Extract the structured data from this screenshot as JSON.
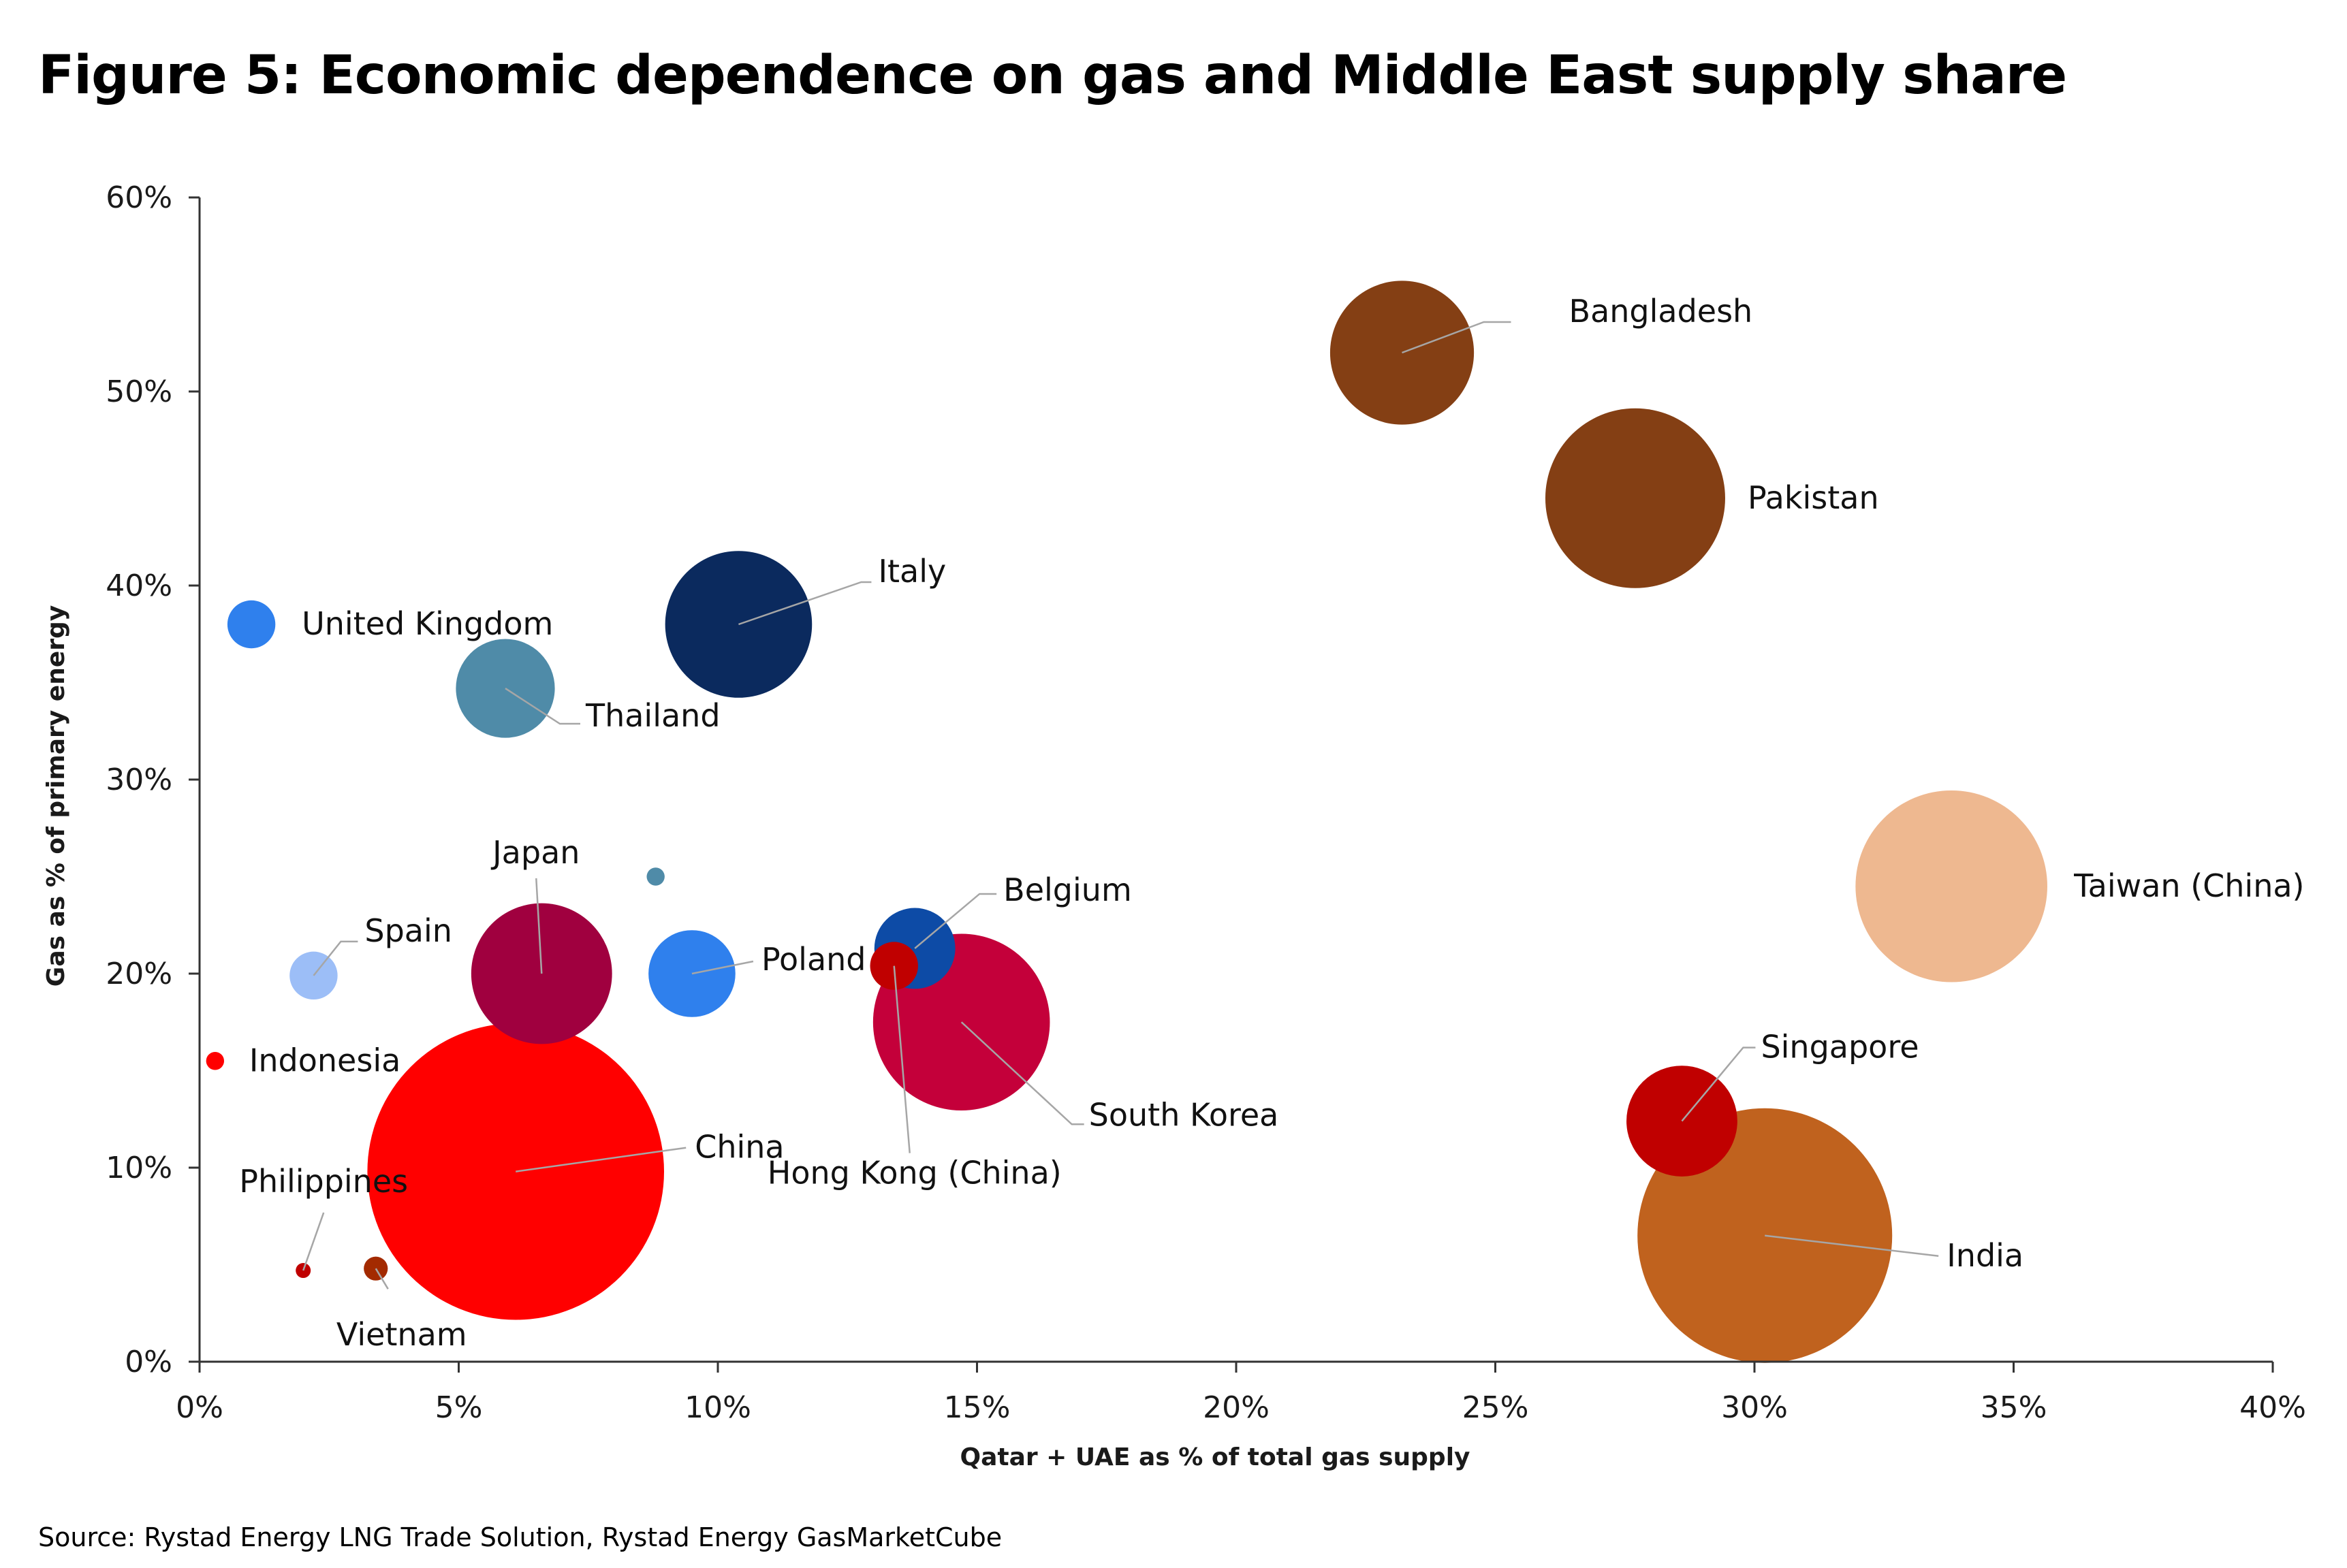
{
  "title": "Figure 5: Economic dependence on gas and Middle East supply share",
  "source": "Source: Rystad Energy LNG Trade Solution, Rystad Energy GasMarketCube",
  "chart_data": {
    "type": "scatter",
    "subtype": "bubble",
    "xlabel": "Qatar + UAE as % of total gas supply",
    "ylabel": "Gas as % of primary energy",
    "xlim": [
      0,
      40
    ],
    "ylim": [
      0,
      60
    ],
    "x_ticks": [
      "0%",
      "5%",
      "10%",
      "15%",
      "20%",
      "25%",
      "30%",
      "35%",
      "40%"
    ],
    "y_ticks": [
      "0%",
      "10%",
      "20%",
      "30%",
      "40%",
      "50%",
      "60%"
    ],
    "x_tick_values": [
      0,
      5,
      10,
      15,
      20,
      25,
      30,
      35,
      40
    ],
    "y_tick_values": [
      0,
      10,
      20,
      30,
      40,
      50,
      60
    ],
    "grid": false,
    "legend": "none",
    "points": [
      {
        "label": "Bangladesh",
        "x": 23.2,
        "y": 52.0,
        "size": 48,
        "color": "#843F14"
      },
      {
        "label": "Pakistan",
        "x": 27.7,
        "y": 44.5,
        "size": 60,
        "color": "#843F14"
      },
      {
        "label": "Italy",
        "x": 10.4,
        "y": 38.0,
        "size": 49,
        "color": "#0B2A5E"
      },
      {
        "label": "United Kingdom",
        "x": 1.0,
        "y": 38.0,
        "size": 16,
        "color": "#2F80ED"
      },
      {
        "label": "Thailand",
        "x": 5.9,
        "y": 34.7,
        "size": 33,
        "color": "#4F8BA8"
      },
      {
        "label": "Taiwan (China)",
        "x": 33.8,
        "y": 24.5,
        "size": 64,
        "color": "#EEB890"
      },
      {
        "label": "",
        "x": 8.8,
        "y": 25.0,
        "size": 6,
        "color": "#4F8BA8"
      },
      {
        "label": "Japan",
        "x": 6.6,
        "y": 20.0,
        "size": 47,
        "color": "#A0003F"
      },
      {
        "label": "Spain",
        "x": 2.2,
        "y": 19.9,
        "size": 16,
        "color": "#9CBEF7"
      },
      {
        "label": "Poland",
        "x": 9.5,
        "y": 20.0,
        "size": 29,
        "color": "#2F80ED"
      },
      {
        "label": "Belgium",
        "x": 13.8,
        "y": 21.3,
        "size": 27,
        "color": "#0D4BA6"
      },
      {
        "label": "Hong Kong (China)",
        "x": 13.4,
        "y": 20.4,
        "size": 16,
        "color": "#C00000"
      },
      {
        "label": "South Korea",
        "x": 14.7,
        "y": 17.5,
        "size": 59,
        "color": "#C4003A"
      },
      {
        "label": "Indonesia",
        "x": 0.3,
        "y": 15.5,
        "size": 6,
        "color": "#FF0000"
      },
      {
        "label": "China",
        "x": 6.1,
        "y": 9.8,
        "size": 99,
        "color": "#FF0000"
      },
      {
        "label": "Singapore",
        "x": 28.6,
        "y": 12.4,
        "size": 37,
        "color": "#C00000"
      },
      {
        "label": "India",
        "x": 30.2,
        "y": 6.5,
        "size": 85,
        "color": "#C0621E"
      },
      {
        "label": "Philippines",
        "x": 2.0,
        "y": 4.7,
        "size": 5,
        "color": "#C00000"
      },
      {
        "label": "Vietnam",
        "x": 3.4,
        "y": 4.8,
        "size": 8,
        "color": "#A32A00"
      }
    ]
  }
}
